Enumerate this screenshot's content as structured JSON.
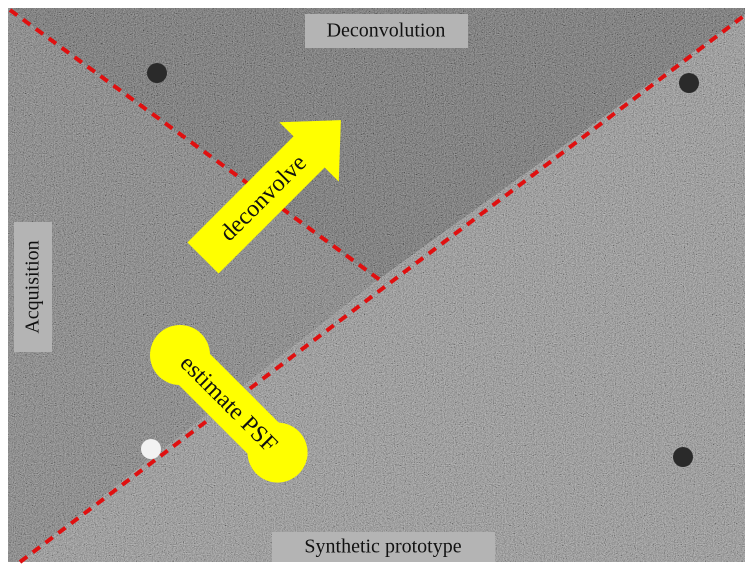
{
  "regions": {
    "top": "Deconvolution",
    "left": "Acquisition",
    "bottom": "Synthetic prototype"
  },
  "arrows": {
    "deconvolve": "deconvolve",
    "estimate": "estimate PSF"
  }
}
